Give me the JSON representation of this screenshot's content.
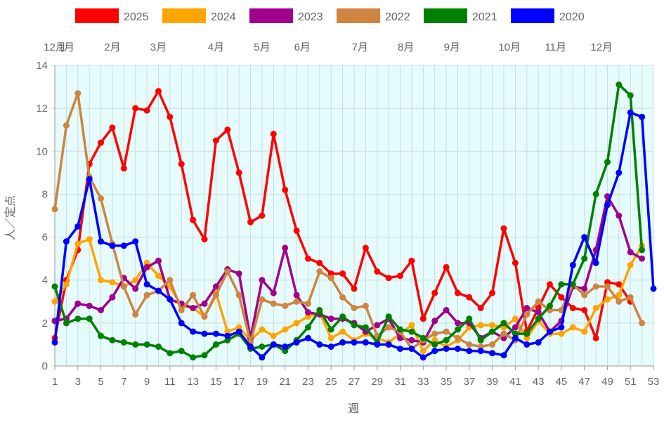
{
  "chart_data": {
    "type": "line",
    "title": "",
    "xlabel": "週",
    "ylabel": "人／定点",
    "xlim": [
      1,
      53
    ],
    "ylim": [
      0,
      14
    ],
    "x_ticks": [
      1,
      3,
      5,
      7,
      9,
      11,
      13,
      15,
      17,
      19,
      21,
      23,
      25,
      27,
      29,
      31,
      33,
      35,
      37,
      39,
      41,
      43,
      45,
      47,
      49,
      51,
      53
    ],
    "y_ticks": [
      0,
      2,
      4,
      6,
      8,
      10,
      12,
      14
    ],
    "grid": true,
    "plot_background": "#e6fbfb",
    "legend_position": "top",
    "month_labels": [
      {
        "label": "12月",
        "week": 1
      },
      {
        "label": "1月",
        "week": 2
      },
      {
        "label": "2月",
        "week": 6
      },
      {
        "label": "3月",
        "week": 10
      },
      {
        "label": "4月",
        "week": 15
      },
      {
        "label": "5月",
        "week": 19
      },
      {
        "label": "6月",
        "week": 22.5
      },
      {
        "label": "7月",
        "week": 27.5
      },
      {
        "label": "8月",
        "week": 31.5
      },
      {
        "label": "9月",
        "week": 35.5
      },
      {
        "label": "10月",
        "week": 40.5
      },
      {
        "label": "11月",
        "week": 44.5
      },
      {
        "label": "12月",
        "week": 48.5
      }
    ],
    "series": [
      {
        "name": "2025",
        "color": "#ff0000",
        "x": [
          1,
          2,
          3,
          4,
          5,
          6,
          7,
          8,
          9,
          10,
          11,
          12,
          13,
          14,
          15,
          16,
          17,
          18,
          19,
          20,
          21,
          22,
          23,
          24,
          25,
          26,
          27,
          28,
          29,
          30,
          31,
          32,
          33,
          34,
          35,
          36,
          37,
          38,
          39,
          40,
          41,
          42,
          43,
          44,
          45,
          46,
          47,
          48,
          49,
          50,
          51
        ],
        "y": [
          1.3,
          4.0,
          5.4,
          9.4,
          10.4,
          11.1,
          9.2,
          12.0,
          11.9,
          12.8,
          11.6,
          9.4,
          6.8,
          5.9,
          10.5,
          11.0,
          9.0,
          6.7,
          7.0,
          10.8,
          8.2,
          6.3,
          5.0,
          4.8,
          4.3,
          4.3,
          3.6,
          5.5,
          4.4,
          4.1,
          4.2,
          4.9,
          2.2,
          3.4,
          4.6,
          3.4,
          3.2,
          2.7,
          3.4,
          6.4,
          4.8,
          1.6,
          2.7,
          3.8,
          3.2,
          2.7,
          2.6,
          1.3,
          3.9,
          3.8,
          3.0
        ]
      },
      {
        "name": "2024",
        "color": "#ffa500",
        "x": [
          1,
          2,
          3,
          4,
          5,
          6,
          7,
          8,
          9,
          10,
          11,
          12,
          13,
          14,
          15,
          16,
          17,
          18,
          19,
          20,
          21,
          22,
          23,
          24,
          25,
          26,
          27,
          28,
          29,
          30,
          31,
          32,
          33,
          34,
          35,
          36,
          37,
          38,
          39,
          40,
          41,
          42,
          43,
          44,
          45,
          46,
          47,
          48,
          49,
          50,
          51,
          52
        ],
        "y": [
          3.0,
          3.8,
          5.7,
          5.9,
          4.0,
          3.9,
          3.7,
          4.0,
          4.8,
          4.2,
          3.7,
          2.8,
          2.7,
          2.3,
          3.4,
          1.6,
          1.8,
          1.2,
          1.7,
          1.4,
          1.7,
          2.0,
          2.3,
          2.5,
          1.3,
          1.6,
          1.2,
          1.5,
          1.3,
          1.1,
          1.5,
          1.9,
          0.7,
          1.2,
          0.9,
          1.2,
          1.8,
          1.9,
          1.9,
          1.8,
          2.2,
          1.3,
          2.1,
          1.5,
          1.5,
          1.8,
          1.6,
          2.7,
          3.1,
          3.3,
          4.7,
          5.6
        ]
      },
      {
        "name": "2023",
        "color": "#a0008c",
        "x": [
          1,
          2,
          3,
          4,
          5,
          6,
          7,
          8,
          9,
          10,
          11,
          12,
          13,
          14,
          15,
          16,
          17,
          18,
          19,
          20,
          21,
          22,
          23,
          24,
          25,
          26,
          27,
          28,
          29,
          30,
          31,
          32,
          33,
          34,
          35,
          36,
          37,
          38,
          39,
          40,
          41,
          42,
          43,
          44,
          45,
          46,
          47,
          48,
          49,
          50,
          51,
          52
        ],
        "y": [
          2.1,
          2.2,
          2.9,
          2.8,
          2.6,
          3.2,
          4.1,
          3.6,
          4.6,
          4.9,
          3.1,
          2.9,
          2.7,
          2.9,
          3.7,
          4.5,
          4.3,
          1.3,
          4.0,
          3.4,
          5.5,
          3.3,
          2.5,
          2.4,
          2.2,
          2.2,
          2.0,
          1.6,
          1.9,
          2.2,
          1.3,
          1.2,
          1.1,
          2.1,
          2.6,
          2.0,
          2.0,
          1.3,
          1.6,
          1.3,
          1.8,
          2.7,
          2.5,
          1.6,
          2.1,
          3.7,
          3.6,
          5.4,
          7.9,
          7.0,
          5.3,
          5.0
        ]
      },
      {
        "name": "2022",
        "color": "#cd853f",
        "x": [
          1,
          2,
          3,
          4,
          5,
          6,
          7,
          8,
          9,
          10,
          11,
          12,
          13,
          14,
          15,
          16,
          17,
          18,
          19,
          20,
          21,
          22,
          23,
          24,
          25,
          26,
          27,
          28,
          29,
          30,
          31,
          32,
          33,
          34,
          35,
          36,
          37,
          38,
          39,
          40,
          41,
          42,
          43,
          44,
          45,
          46,
          47,
          48,
          49,
          50,
          51,
          52
        ],
        "y": [
          7.3,
          11.2,
          12.7,
          8.8,
          7.8,
          5.7,
          3.7,
          2.4,
          3.3,
          3.5,
          4.0,
          2.6,
          3.3,
          2.3,
          3.3,
          4.4,
          3.3,
          1.1,
          3.1,
          2.9,
          2.8,
          3.0,
          2.9,
          4.4,
          4.1,
          3.2,
          2.7,
          2.8,
          1.4,
          1.8,
          1.6,
          0.8,
          1.2,
          1.5,
          1.6,
          1.3,
          1.0,
          0.9,
          1.0,
          1.5,
          1.2,
          2.4,
          3.0,
          2.6,
          2.6,
          3.8,
          3.3,
          3.7,
          3.7,
          3.0,
          3.2,
          2.0
        ]
      },
      {
        "name": "2021",
        "color": "#008000",
        "x": [
          1,
          2,
          3,
          4,
          5,
          6,
          7,
          8,
          9,
          10,
          11,
          12,
          13,
          14,
          15,
          16,
          17,
          18,
          19,
          20,
          21,
          22,
          23,
          24,
          25,
          26,
          27,
          28,
          29,
          30,
          31,
          32,
          33,
          34,
          35,
          36,
          37,
          38,
          39,
          40,
          41,
          42,
          43,
          44,
          45,
          46,
          47,
          48,
          49,
          50,
          51,
          52
        ],
        "y": [
          3.7,
          2.0,
          2.2,
          2.2,
          1.4,
          1.2,
          1.1,
          1.0,
          1.0,
          0.9,
          0.6,
          0.7,
          0.4,
          0.5,
          1.0,
          1.2,
          1.5,
          0.8,
          0.9,
          1.0,
          0.7,
          1.2,
          1.8,
          2.6,
          1.7,
          2.3,
          1.9,
          1.8,
          1.1,
          2.3,
          1.7,
          1.6,
          1.3,
          1.0,
          1.2,
          1.7,
          2.2,
          1.2,
          1.6,
          2.0,
          1.5,
          1.5,
          2.2,
          2.8,
          3.8,
          3.8,
          5.0,
          8.0,
          9.5,
          13.1,
          12.6,
          5.4
        ]
      },
      {
        "name": "2020",
        "color": "#0000ff",
        "x": [
          1,
          2,
          3,
          4,
          5,
          6,
          7,
          8,
          9,
          10,
          11,
          12,
          13,
          14,
          15,
          16,
          17,
          18,
          19,
          20,
          21,
          22,
          23,
          24,
          25,
          26,
          27,
          28,
          29,
          30,
          31,
          32,
          33,
          34,
          35,
          36,
          37,
          38,
          39,
          40,
          41,
          42,
          43,
          44,
          45,
          46,
          47,
          48,
          49,
          50,
          51,
          52,
          53
        ],
        "y": [
          1.1,
          5.8,
          6.5,
          8.7,
          5.8,
          5.6,
          5.6,
          5.8,
          3.8,
          3.5,
          3.1,
          2.0,
          1.6,
          1.5,
          1.5,
          1.4,
          1.6,
          0.9,
          0.4,
          1.0,
          0.9,
          1.1,
          1.3,
          1.0,
          0.9,
          1.1,
          1.1,
          1.1,
          1.0,
          1.0,
          0.8,
          0.8,
          0.4,
          0.7,
          0.8,
          0.8,
          0.7,
          0.7,
          0.6,
          0.5,
          1.3,
          1.0,
          1.1,
          1.6,
          1.8,
          4.7,
          6.0,
          4.8,
          7.5,
          9.0,
          11.8,
          11.6,
          3.6
        ]
      }
    ]
  }
}
